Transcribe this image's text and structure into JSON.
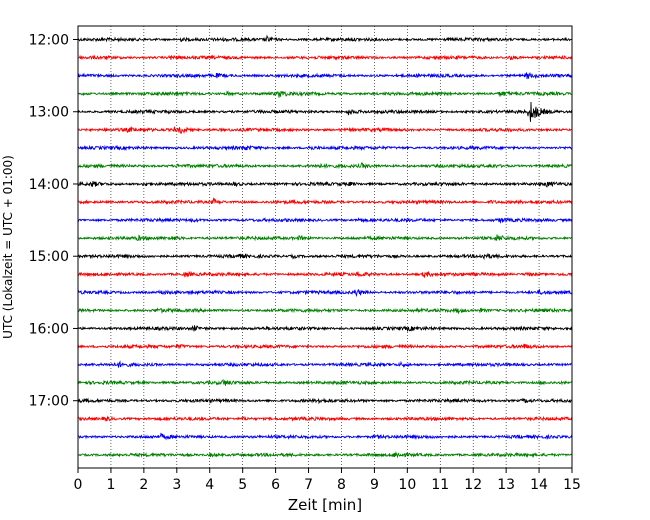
{
  "chart_data": {
    "type": "line",
    "subtype": "helicorder",
    "title": "",
    "xlabel": "Zeit  [min]",
    "ylabel": "UTC (Lokalzeit = UTC + 01:00)",
    "xlim": [
      0,
      15
    ],
    "x_ticks": [
      "0",
      "1",
      "2",
      "3",
      "4",
      "5",
      "6",
      "7",
      "8",
      "9",
      "10",
      "11",
      "12",
      "13",
      "14",
      "15"
    ],
    "y_tick_labels": [
      "12:00",
      "13:00",
      "14:00",
      "15:00",
      "16:00",
      "17:00"
    ],
    "trace_interval_minutes": 15,
    "trace_start": "12:00",
    "trace_count": 24,
    "grid": "vertical dotted lines at each minute",
    "colors": [
      "#000000",
      "#ff0000",
      "#0000ff",
      "#008000"
    ],
    "series": [
      {
        "start": "12:00",
        "events": [
          [
            5.7,
            3
          ],
          [
            3.1,
            1.5
          ]
        ]
      },
      {
        "start": "12:15",
        "events": [
          [
            2.8,
            2
          ],
          [
            13.1,
            2
          ]
        ]
      },
      {
        "start": "12:30",
        "events": [
          [
            13.6,
            3
          ],
          [
            4.2,
            1.5
          ]
        ]
      },
      {
        "start": "12:45",
        "events": [
          [
            6.1,
            3
          ],
          [
            12.8,
            3
          ],
          [
            4.5,
            1.5
          ]
        ]
      },
      {
        "start": "13:00",
        "events": [
          [
            13.7,
            12
          ],
          [
            8.2,
            3
          ]
        ]
      },
      {
        "start": "13:15",
        "events": [
          [
            3.1,
            3
          ],
          [
            2.9,
            2.5
          ],
          [
            1.5,
            1.5
          ]
        ]
      },
      {
        "start": "13:30",
        "events": [
          [
            5.0,
            2
          ],
          [
            7.0,
            2
          ]
        ]
      },
      {
        "start": "13:45",
        "events": [
          [
            8.6,
            2
          ],
          [
            12.5,
            2
          ],
          [
            7.2,
            1.5
          ],
          [
            3.0,
            1.5
          ]
        ]
      },
      {
        "start": "14:00",
        "events": [
          [
            0.4,
            2.5
          ],
          [
            2.0,
            2
          ],
          [
            4.7,
            2
          ],
          [
            14.2,
            2
          ],
          [
            8.2,
            1.5
          ]
        ]
      },
      {
        "start": "14:15",
        "events": [
          [
            4.1,
            2.5
          ],
          [
            12.5,
            1.5
          ]
        ]
      },
      {
        "start": "14:30",
        "events": [
          [
            12.8,
            2
          ],
          [
            3.4,
            1.5
          ],
          [
            8.5,
            1.5
          ]
        ]
      },
      {
        "start": "14:45",
        "events": [
          [
            12.7,
            3
          ],
          [
            2.8,
            2
          ],
          [
            6.7,
            2
          ],
          [
            1.8,
            1.5
          ]
        ]
      },
      {
        "start": "15:00",
        "events": [
          [
            12.3,
            2
          ],
          [
            4.8,
            1.5
          ],
          [
            6.5,
            1.5
          ]
        ]
      },
      {
        "start": "15:15",
        "events": [
          [
            10.5,
            3
          ],
          [
            3.2,
            2.5
          ],
          [
            8.5,
            2
          ],
          [
            13.6,
            1.5
          ]
        ]
      },
      {
        "start": "15:30",
        "events": [
          [
            8.4,
            3.5
          ],
          [
            2.5,
            2
          ],
          [
            14.0,
            1.5
          ]
        ]
      },
      {
        "start": "15:45",
        "events": [
          [
            11.5,
            2
          ],
          [
            12.2,
            1.5
          ],
          [
            2.4,
            1.5
          ]
        ]
      },
      {
        "start": "16:00",
        "events": [
          [
            3.5,
            2.5
          ],
          [
            10.0,
            1.5
          ]
        ]
      },
      {
        "start": "16:15",
        "events": [
          [
            3.0,
            2
          ],
          [
            13.5,
            2
          ]
        ]
      },
      {
        "start": "16:30",
        "events": [
          [
            1.2,
            2
          ],
          [
            9.8,
            1.5
          ]
        ]
      },
      {
        "start": "16:45",
        "events": [
          [
            4.4,
            2.5
          ],
          [
            14.0,
            1.5
          ]
        ]
      },
      {
        "start": "17:00",
        "events": [
          [
            13.5,
            2
          ],
          [
            7.3,
            1.5
          ]
        ]
      },
      {
        "start": "17:15",
        "events": [
          [
            0.8,
            2
          ],
          [
            5.0,
            1.5
          ]
        ]
      },
      {
        "start": "17:30",
        "events": [
          [
            2.5,
            2
          ],
          [
            9.0,
            1.5
          ]
        ]
      },
      {
        "start": "17:45",
        "events": [
          [
            9.6,
            2.5
          ],
          [
            4.0,
            1.5
          ]
        ]
      }
    ]
  }
}
